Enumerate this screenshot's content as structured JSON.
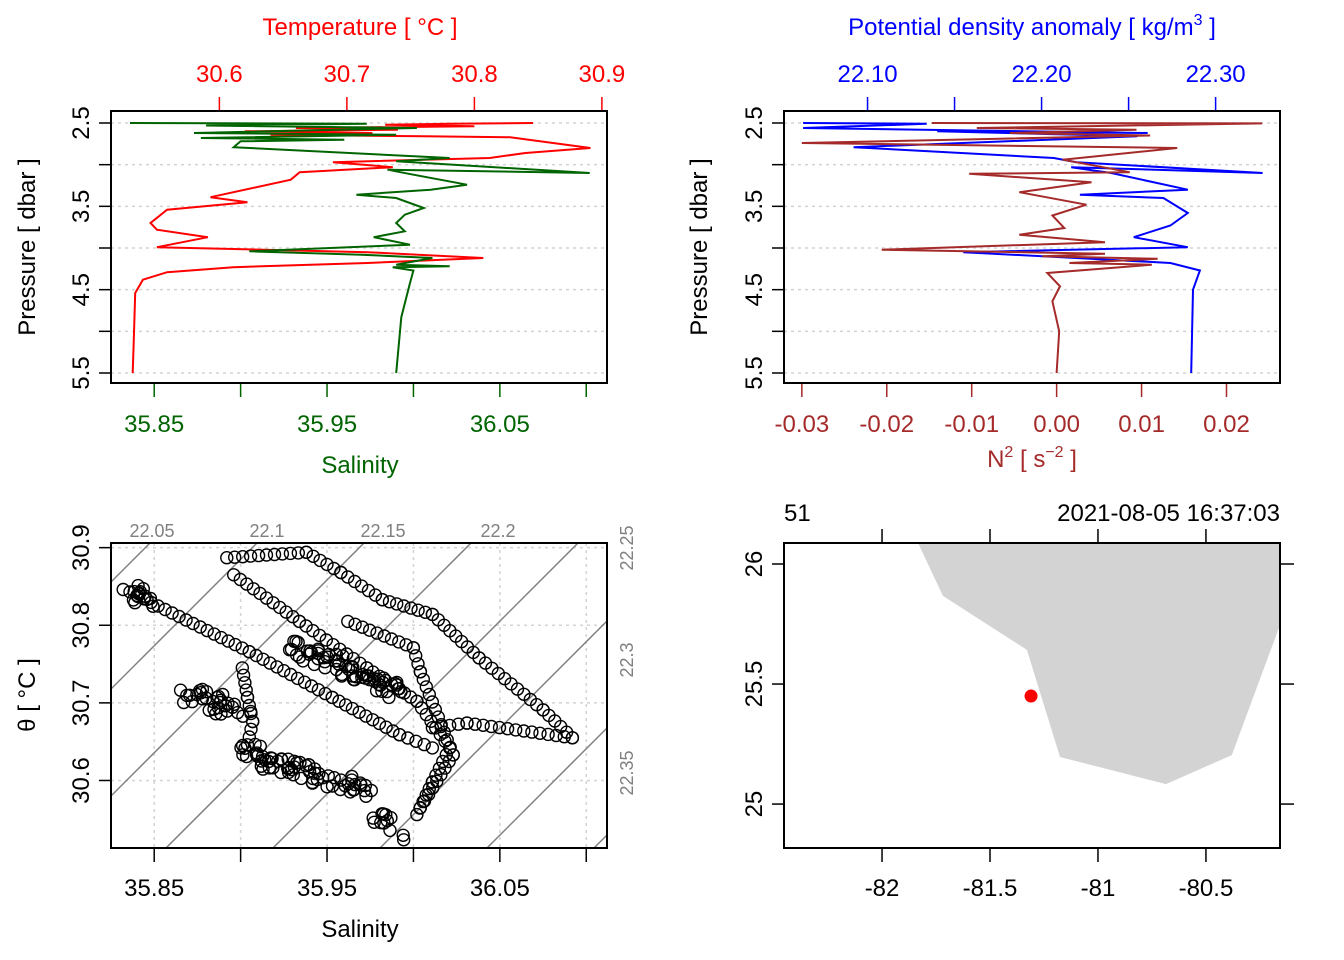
{
  "chart_data": [
    {
      "type": "line",
      "panel": "profile-temperature-salinity",
      "xlabel_top": "Temperature [ °C ]",
      "xlabel_bottom": "Salinity",
      "ylabel": "Pressure [ dbar ]",
      "ylim": [
        5.62,
        2.356
      ],
      "yticks": [
        2.5,
        3,
        3.5,
        4,
        4.5,
        5,
        5.5
      ],
      "ytick_labels": [
        "2.5",
        "",
        "3.5",
        "",
        "4.5",
        "",
        "5.5"
      ],
      "grid": "horizontal dashed",
      "x_top": {
        "xlim": [
          30.515,
          30.904
        ],
        "ticks": [
          30.6,
          30.7,
          30.8,
          30.9
        ],
        "labels": [
          "30.6",
          "30.7",
          "30.8",
          "30.9"
        ],
        "color": "#FF0000"
      },
      "x_bottom": {
        "xlim": [
          35.825,
          36.112
        ],
        "ticks": [
          35.85,
          35.9,
          35.95,
          36.0,
          36.05,
          36.1
        ],
        "labels": [
          "35.85",
          "",
          "35.95",
          "",
          "36.05",
          ""
        ],
        "color": "#006400"
      },
      "series": [
        {
          "name": "Temperature",
          "axis": "top",
          "color": "#FF0000",
          "points": [
            [
              2.5,
              30.846
            ],
            [
              2.51,
              30.78
            ],
            [
              2.52,
              30.73
            ],
            [
              2.54,
              30.8
            ],
            [
              2.56,
              30.66
            ],
            [
              2.58,
              30.74
            ],
            [
              2.6,
              30.62
            ],
            [
              2.62,
              30.72
            ],
            [
              2.64,
              30.64
            ],
            [
              2.66,
              30.76
            ],
            [
              2.67,
              30.828
            ],
            [
              2.8,
              30.891
            ],
            [
              2.86,
              30.84
            ],
            [
              2.92,
              30.812
            ],
            [
              2.97,
              30.689
            ],
            [
              3.03,
              30.736
            ],
            [
              3.09,
              30.663
            ],
            [
              3.18,
              30.656
            ],
            [
              3.39,
              30.593
            ],
            [
              3.45,
              30.622
            ],
            [
              3.54,
              30.559
            ],
            [
              3.7,
              30.546
            ],
            [
              3.78,
              30.551
            ],
            [
              3.87,
              30.591
            ],
            [
              3.99,
              30.551
            ],
            [
              4.05,
              30.716
            ],
            [
              4.12,
              30.807
            ],
            [
              4.18,
              30.716
            ],
            [
              4.23,
              30.611
            ],
            [
              4.29,
              30.559
            ],
            [
              4.38,
              30.54
            ],
            [
              4.54,
              30.534
            ],
            [
              5.02,
              30.533
            ],
            [
              5.5,
              30.532
            ]
          ]
        },
        {
          "name": "Salinity",
          "axis": "bottom",
          "color": "#006400",
          "points": [
            [
              2.5,
              35.836
            ],
            [
              2.51,
              35.973
            ],
            [
              2.53,
              35.88
            ],
            [
              2.56,
              36.002
            ],
            [
              2.62,
              35.873
            ],
            [
              2.64,
              35.99
            ],
            [
              2.68,
              35.877
            ],
            [
              2.7,
              35.96
            ],
            [
              2.72,
              35.9
            ],
            [
              2.79,
              35.896
            ],
            [
              2.92,
              36.021
            ],
            [
              2.96,
              35.99
            ],
            [
              3.1,
              36.102
            ],
            [
              3.06,
              35.985
            ],
            [
              3.12,
              36.0
            ],
            [
              3.24,
              36.031
            ],
            [
              3.3,
              36.01
            ],
            [
              3.36,
              35.967
            ],
            [
              3.4,
              35.99
            ],
            [
              3.52,
              36.006
            ],
            [
              3.6,
              35.995
            ],
            [
              3.7,
              35.99
            ],
            [
              3.8,
              35.995
            ],
            [
              3.87,
              35.977
            ],
            [
              3.96,
              35.998
            ],
            [
              4.04,
              35.905
            ],
            [
              4.08,
              35.97
            ],
            [
              4.12,
              36.011
            ],
            [
              4.2,
              35.99
            ],
            [
              4.22,
              36.021
            ],
            [
              4.23,
              35.988
            ],
            [
              4.27,
              36.0
            ],
            [
              4.42,
              35.998
            ],
            [
              4.83,
              35.993
            ],
            [
              5.5,
              35.99
            ]
          ]
        }
      ]
    },
    {
      "type": "line",
      "panel": "profile-density-n2",
      "xlabel_top": "Potential density anomaly [ kg/m",
      "xlabel_top_sup": "3",
      "xlabel_top_end": " ]",
      "xlabel_bottom": "N",
      "xlabel_bottom_sup": "2",
      "xlabel_bottom_mid": " [ s",
      "xlabel_bottom_sup2": "−2",
      "xlabel_bottom_end": " ]",
      "ylabel": "Pressure [ dbar ]",
      "ylim": [
        5.62,
        2.356
      ],
      "yticks": [
        2.5,
        3,
        3.5,
        4,
        4.5,
        5,
        5.5
      ],
      "ytick_labels": [
        "2.5",
        "",
        "3.5",
        "",
        "4.5",
        "",
        "5.5"
      ],
      "grid": "horizontal dashed",
      "x_top": {
        "xlim": [
          22.052,
          22.337
        ],
        "ticks": [
          22.1,
          22.15,
          22.2,
          22.25,
          22.3
        ],
        "labels": [
          "22.10",
          "",
          "22.20",
          "",
          "22.30"
        ],
        "color": "#0000FF"
      },
      "x_bottom": {
        "xlim": [
          -0.0321,
          0.0263
        ],
        "ticks": [
          -0.03,
          -0.02,
          -0.01,
          0,
          0.01,
          0.02
        ],
        "labels": [
          "-0.03",
          "-0.02",
          "-0.01",
          "0.00",
          "0.01",
          "0.02"
        ],
        "color": "#A52A2A"
      },
      "series": [
        {
          "name": "Potential density anomaly",
          "axis": "top",
          "color": "#0000FF",
          "points": [
            [
              2.5,
              22.063
            ],
            [
              2.51,
              22.134
            ],
            [
              2.56,
              22.063
            ],
            [
              2.62,
              22.261
            ],
            [
              2.6,
              22.14
            ],
            [
              2.66,
              22.255
            ],
            [
              2.79,
              22.092
            ],
            [
              2.92,
              22.207
            ],
            [
              2.97,
              22.22
            ],
            [
              3.1,
              22.327
            ],
            [
              3.03,
              22.217
            ],
            [
              3.1,
              22.24
            ],
            [
              3.3,
              22.284
            ],
            [
              3.36,
              22.222
            ],
            [
              3.4,
              22.27
            ],
            [
              3.58,
              22.284
            ],
            [
              3.73,
              22.274
            ],
            [
              3.87,
              22.253
            ],
            [
              3.99,
              22.284
            ],
            [
              4.05,
              22.155
            ],
            [
              4.12,
              22.22
            ],
            [
              4.18,
              22.274
            ],
            [
              4.27,
              22.291
            ],
            [
              4.5,
              22.287
            ],
            [
              5.5,
              22.286
            ]
          ]
        },
        {
          "name": "N2",
          "axis": "bottom",
          "color": "#A52A2A",
          "points": [
            [
              2.5,
              -0.0147
            ],
            [
              2.505,
              0.0242
            ],
            [
              2.56,
              -0.0094
            ],
            [
              2.58,
              0.0094
            ],
            [
              2.62,
              -0.0055
            ],
            [
              2.65,
              0.011
            ],
            [
              2.74,
              -0.03
            ],
            [
              2.8,
              0.0142
            ],
            [
              2.94,
              0.0007
            ],
            [
              3.09,
              0.0086
            ],
            [
              3.11,
              -0.0103
            ],
            [
              3.21,
              0.0041
            ],
            [
              3.33,
              -0.0044
            ],
            [
              3.48,
              0.0035
            ],
            [
              3.61,
              -0.0005
            ],
            [
              3.76,
              0.0009
            ],
            [
              3.84,
              -0.0044
            ],
            [
              3.93,
              0.0057
            ],
            [
              4.02,
              -0.0206
            ],
            [
              4.07,
              0.0057
            ],
            [
              4.1,
              -0.0017
            ],
            [
              4.13,
              0.0119
            ],
            [
              4.18,
              0.0015
            ],
            [
              4.2,
              0.0112
            ],
            [
              4.3,
              -0.0011
            ],
            [
              4.46,
              0.0004
            ],
            [
              4.64,
              -0.0005
            ],
            [
              5.0,
              0.0003
            ],
            [
              5.5,
              0.0
            ]
          ]
        }
      ]
    },
    {
      "type": "scatter",
      "panel": "ts-diagram",
      "xlabel": "Salinity",
      "ylabel": "θ [ °C ]",
      "xlim": [
        35.825,
        36.112
      ],
      "ylim": [
        30.513,
        30.906
      ],
      "xticks": [
        35.85,
        35.9,
        35.95,
        36.0,
        36.05,
        36.1
      ],
      "xtick_labels": [
        "35.85",
        "",
        "35.95",
        "",
        "36.05",
        ""
      ],
      "yticks": [
        30.6,
        30.7,
        30.8,
        30.9
      ],
      "ytick_labels": [
        "30.6",
        "30.7",
        "30.8",
        "30.9"
      ],
      "grid": "dashed",
      "isopycnal_color": "#808080",
      "isopycnals": [
        21.9,
        21.95,
        22.0,
        22.05,
        22.1,
        22.15,
        22.2,
        22.25,
        22.3,
        22.35,
        22.4,
        22.45
      ],
      "isopycnal_labels_top": [
        "22.05",
        "22.1",
        "22.15",
        "22.2"
      ],
      "isopycnal_labels_right": [
        "22.25",
        "22.3",
        "22.35"
      ],
      "paths": [
        {
          "dense": false,
          "points": [
            [
              35.892,
              30.887
            ],
            [
              35.938,
              30.894
            ],
            [
              35.958,
              30.868
            ],
            [
              35.982,
              30.833
            ],
            [
              36.011,
              30.814
            ],
            [
              36.038,
              30.758
            ],
            [
              36.075,
              30.691
            ],
            [
              36.092,
              30.655
            ],
            [
              36.031,
              30.674
            ],
            [
              36.011,
              30.668
            ]
          ]
        },
        {
          "dense": false,
          "points": [
            [
              35.836,
              30.843
            ],
            [
              35.905,
              30.766
            ],
            [
              35.953,
              30.707
            ],
            [
              35.992,
              30.659
            ],
            [
              36.011,
              30.642
            ]
          ]
        },
        {
          "dense": false,
          "points": [
            [
              35.896,
              30.865
            ],
            [
              35.934,
              30.805
            ],
            [
              35.973,
              30.745
            ],
            [
              36.002,
              30.702
            ],
            [
              36.021,
              30.642
            ],
            [
              36.011,
              30.598
            ],
            [
              36.002,
              30.556
            ]
          ]
        },
        {
          "dense": false,
          "points": [
            [
              35.962,
              30.805
            ],
            [
              36.0,
              30.771
            ],
            [
              36.004,
              30.74
            ],
            [
              36.023,
              30.633
            ],
            [
              36.004,
              30.565
            ]
          ]
        },
        {
          "dense": false,
          "points": [
            [
              35.901,
              30.745
            ],
            [
              35.904,
              30.707
            ],
            [
              35.907,
              30.676
            ],
            [
              35.904,
              30.646
            ]
          ]
        },
        {
          "dense": true,
          "points": [
            [
              35.869,
              30.711
            ],
            [
              35.885,
              30.703
            ],
            [
              35.9,
              30.685
            ]
          ]
        },
        {
          "dense": true,
          "points": [
            [
              35.901,
              30.642
            ],
            [
              35.93,
              30.615
            ],
            [
              35.973,
              30.591
            ]
          ]
        },
        {
          "dense": true,
          "points": [
            [
              35.93,
              30.771
            ],
            [
              35.96,
              30.745
            ],
            [
              35.992,
              30.714
            ]
          ]
        },
        {
          "dense": true,
          "points": [
            [
              35.98,
              30.552
            ],
            [
              35.99,
              30.535
            ]
          ]
        },
        {
          "dense": true,
          "points": [
            [
              35.836,
              30.843
            ],
            [
              35.85,
              30.834
            ]
          ]
        }
      ]
    },
    {
      "type": "map",
      "panel": "station-map",
      "station_label": "51",
      "datetime": "2021-08-05 16:37:03",
      "xlim": [
        -82.454,
        -80.157
      ],
      "ylim": [
        24.817,
        26.0875
      ],
      "xticks": [
        -82,
        -81.5,
        -81,
        -80.5
      ],
      "xtick_labels": [
        "-82",
        "-81.5",
        "-81",
        "-80.5"
      ],
      "yticks": [
        25,
        25.5,
        26
      ],
      "ytick_labels": [
        "25",
        "25.5",
        "26"
      ],
      "land_color": "#D3D3D3",
      "land": [
        [
          -81.833,
          26.0875
        ],
        [
          -81.718,
          25.867
        ],
        [
          -81.329,
          25.642
        ],
        [
          -81.176,
          25.196
        ],
        [
          -80.685,
          25.083
        ],
        [
          -80.38,
          25.204
        ],
        [
          -80.157,
          25.746
        ],
        [
          -80.157,
          26.0875
        ]
      ],
      "station": {
        "lon": -81.31,
        "lat": 25.45,
        "color": "#FF0000"
      }
    }
  ]
}
